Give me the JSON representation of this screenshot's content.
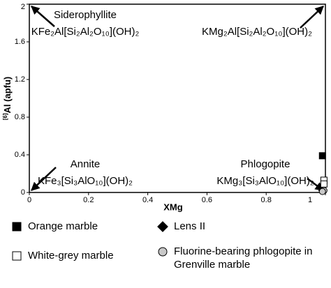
{
  "chart_data": {
    "type": "scatter",
    "x_label": "XMg",
    "y_label_sup": "[6]",
    "y_label": "Al (apfu)",
    "xlim": [
      0,
      1
    ],
    "ylim": [
      0,
      2
    ],
    "xticks": [
      0,
      0.2,
      0.4,
      0.6,
      0.8,
      1
    ],
    "yticks": [
      0,
      0.4,
      0.8,
      1.2,
      1.6,
      2
    ],
    "annotations": [
      {
        "text": [
          "Siderophyllite",
          "KFe₂Al[Si₂Al₂O₁₀](OH)₂"
        ],
        "x": 0,
        "y": 2
      },
      {
        "text": [
          "KMg₂Al[Si₂Al₂O₁₀](OH)₂"
        ],
        "x": 1,
        "y": 2
      },
      {
        "text": [
          "Annite",
          "KFe₃[Si₃AlO₁₀](OH)₂"
        ],
        "x": 0,
        "y": 0
      },
      {
        "text": [
          "Phlogopite",
          "KMg₃[Si₃AlO₁₀](OH)₂"
        ],
        "x": 1,
        "y": 0
      }
    ],
    "series": [
      {
        "name": "Orange marble",
        "marker": "square",
        "color": "#000000",
        "x": [
          0.99
        ],
        "y": [
          0.39
        ]
      },
      {
        "name": "Lens II",
        "marker": "diamond",
        "color": "#000000",
        "x": [
          0.99
        ],
        "y": [
          0.02
        ]
      },
      {
        "name": "White-grey marble",
        "marker": "square-open",
        "color": "#ffffff",
        "x": [
          0.995,
          0.995
        ],
        "y": [
          0.13,
          0.09
        ]
      },
      {
        "name": "Fluorine-bearing phlogopite in Grenville marble",
        "marker": "circle",
        "color": "#c8c8c8",
        "x": [
          0.995,
          0.99
        ],
        "y": [
          0.02,
          0.01
        ]
      }
    ]
  }
}
